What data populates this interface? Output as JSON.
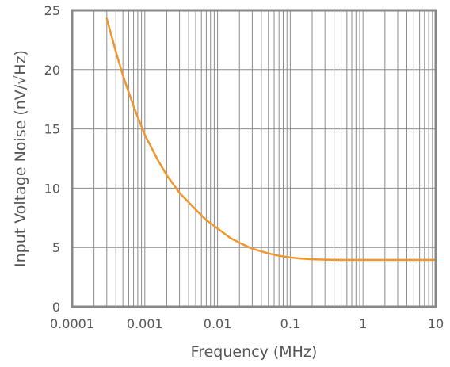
{
  "chart_data": {
    "type": "line",
    "title": "",
    "xlabel": "Frequency (MHz)",
    "ylabel": "Input Voltage Noise (nV/√Hz)",
    "xscale": "log",
    "xlim": [
      0.0001,
      10
    ],
    "ylim": [
      0,
      25
    ],
    "grid": true,
    "x_ticks": [
      "0.0001",
      "0.001",
      "0.01",
      "0.1",
      "1",
      "10"
    ],
    "y_ticks": [
      "0",
      "5",
      "10",
      "15",
      "20",
      "25"
    ],
    "series": [
      {
        "color": "#f0962d",
        "x": [
          0.0003,
          0.0004,
          0.0005,
          0.0007,
          0.001,
          0.0015,
          0.002,
          0.003,
          0.005,
          0.007,
          0.01,
          0.015,
          0.02,
          0.03,
          0.05,
          0.07,
          0.1,
          0.15,
          0.2,
          0.3,
          0.5,
          1,
          2,
          5,
          10
        ],
        "y": [
          24.3,
          21.5,
          19.5,
          16.9,
          14.5,
          12.4,
          11.1,
          9.6,
          8.2,
          7.3,
          6.6,
          5.8,
          5.4,
          4.9,
          4.5,
          4.3,
          4.15,
          4.05,
          4.0,
          3.97,
          3.95,
          3.95,
          3.95,
          3.95,
          3.95
        ]
      }
    ],
    "colors": {
      "frame": "#888888",
      "grid": "#8c8c8c",
      "text": "#555555",
      "line": "#f0962d"
    }
  }
}
